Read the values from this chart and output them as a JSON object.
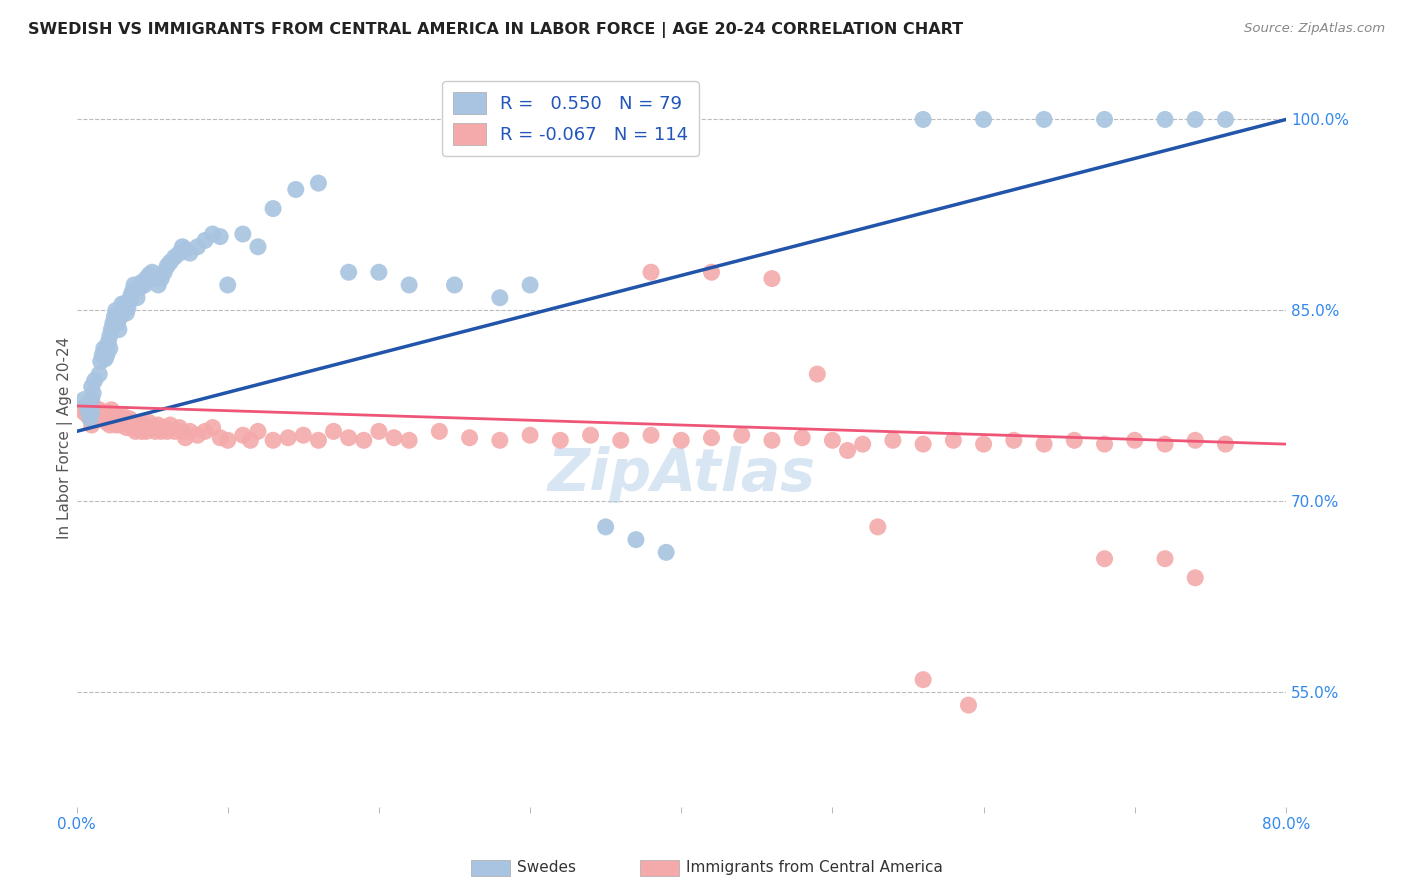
{
  "title": "SWEDISH VS IMMIGRANTS FROM CENTRAL AMERICA IN LABOR FORCE | AGE 20-24 CORRELATION CHART",
  "source": "Source: ZipAtlas.com",
  "ylabel": "In Labor Force | Age 20-24",
  "xlim": [
    0.0,
    0.8
  ],
  "ylim": [
    0.46,
    1.04
  ],
  "yticks": [
    0.55,
    0.7,
    0.85,
    1.0
  ],
  "yticklabels": [
    "55.0%",
    "70.0%",
    "85.0%",
    "100.0%"
  ],
  "blue_R": 0.55,
  "blue_N": 79,
  "pink_R": -0.067,
  "pink_N": 114,
  "blue_color": "#A8C4E0",
  "pink_color": "#F4AAAA",
  "blue_line_color": "#2255AA",
  "pink_line_color": "#EE5577",
  "blue_scatter_x": [
    0.005,
    0.007,
    0.008,
    0.009,
    0.01,
    0.01,
    0.01,
    0.011,
    0.012,
    0.015,
    0.016,
    0.017,
    0.018,
    0.019,
    0.02,
    0.02,
    0.021,
    0.022,
    0.022,
    0.023,
    0.024,
    0.025,
    0.026,
    0.027,
    0.028,
    0.029,
    0.03,
    0.031,
    0.032,
    0.033,
    0.034,
    0.035,
    0.036,
    0.037,
    0.038,
    0.04,
    0.042,
    0.043,
    0.045,
    0.046,
    0.048,
    0.05,
    0.052,
    0.054,
    0.056,
    0.058,
    0.06,
    0.062,
    0.065,
    0.068,
    0.07,
    0.072,
    0.075,
    0.08,
    0.085,
    0.09,
    0.095,
    0.1,
    0.11,
    0.12,
    0.13,
    0.145,
    0.16,
    0.18,
    0.2,
    0.22,
    0.25,
    0.28,
    0.3,
    0.35,
    0.37,
    0.39,
    0.56,
    0.6,
    0.64,
    0.68,
    0.72,
    0.74,
    0.76
  ],
  "blue_scatter_y": [
    0.78,
    0.775,
    0.77,
    0.765,
    0.79,
    0.78,
    0.77,
    0.785,
    0.795,
    0.8,
    0.81,
    0.815,
    0.82,
    0.812,
    0.82,
    0.815,
    0.825,
    0.83,
    0.82,
    0.835,
    0.84,
    0.845,
    0.85,
    0.84,
    0.835,
    0.845,
    0.855,
    0.85,
    0.855,
    0.848,
    0.852,
    0.858,
    0.862,
    0.865,
    0.87,
    0.86,
    0.868,
    0.872,
    0.87,
    0.875,
    0.878,
    0.88,
    0.875,
    0.87,
    0.875,
    0.88,
    0.885,
    0.888,
    0.892,
    0.895,
    0.9,
    0.898,
    0.895,
    0.9,
    0.905,
    0.91,
    0.908,
    0.87,
    0.91,
    0.9,
    0.93,
    0.945,
    0.95,
    0.88,
    0.88,
    0.87,
    0.87,
    0.86,
    0.87,
    0.68,
    0.67,
    0.66,
    1.0,
    1.0,
    1.0,
    1.0,
    1.0,
    1.0,
    1.0
  ],
  "pink_scatter_x": [
    0.005,
    0.006,
    0.007,
    0.008,
    0.009,
    0.01,
    0.01,
    0.011,
    0.012,
    0.013,
    0.014,
    0.015,
    0.016,
    0.017,
    0.018,
    0.019,
    0.02,
    0.02,
    0.021,
    0.022,
    0.022,
    0.023,
    0.024,
    0.025,
    0.026,
    0.027,
    0.028,
    0.029,
    0.03,
    0.031,
    0.032,
    0.033,
    0.034,
    0.035,
    0.036,
    0.037,
    0.038,
    0.039,
    0.04,
    0.041,
    0.042,
    0.043,
    0.044,
    0.045,
    0.046,
    0.048,
    0.05,
    0.052,
    0.054,
    0.056,
    0.058,
    0.06,
    0.062,
    0.065,
    0.068,
    0.07,
    0.072,
    0.075,
    0.08,
    0.085,
    0.09,
    0.095,
    0.1,
    0.11,
    0.115,
    0.12,
    0.13,
    0.14,
    0.15,
    0.16,
    0.17,
    0.18,
    0.19,
    0.2,
    0.21,
    0.22,
    0.24,
    0.26,
    0.28,
    0.3,
    0.32,
    0.34,
    0.36,
    0.38,
    0.4,
    0.42,
    0.44,
    0.46,
    0.48,
    0.5,
    0.52,
    0.54,
    0.56,
    0.58,
    0.6,
    0.62,
    0.64,
    0.66,
    0.68,
    0.7,
    0.72,
    0.74,
    0.76,
    0.68,
    0.72,
    0.74,
    0.38,
    0.42,
    0.46,
    0.49,
    0.51,
    0.53,
    0.56,
    0.59
  ],
  "pink_scatter_y": [
    0.77,
    0.775,
    0.768,
    0.772,
    0.765,
    0.778,
    0.76,
    0.775,
    0.77,
    0.768,
    0.765,
    0.772,
    0.768,
    0.77,
    0.765,
    0.768,
    0.77,
    0.762,
    0.768,
    0.765,
    0.76,
    0.772,
    0.768,
    0.765,
    0.76,
    0.768,
    0.765,
    0.76,
    0.768,
    0.762,
    0.765,
    0.758,
    0.762,
    0.765,
    0.76,
    0.758,
    0.762,
    0.755,
    0.76,
    0.758,
    0.762,
    0.755,
    0.76,
    0.758,
    0.755,
    0.762,
    0.758,
    0.755,
    0.76,
    0.755,
    0.758,
    0.755,
    0.76,
    0.755,
    0.758,
    0.755,
    0.75,
    0.755,
    0.752,
    0.755,
    0.758,
    0.75,
    0.748,
    0.752,
    0.748,
    0.755,
    0.748,
    0.75,
    0.752,
    0.748,
    0.755,
    0.75,
    0.748,
    0.755,
    0.75,
    0.748,
    0.755,
    0.75,
    0.748,
    0.752,
    0.748,
    0.752,
    0.748,
    0.752,
    0.748,
    0.75,
    0.752,
    0.748,
    0.75,
    0.748,
    0.745,
    0.748,
    0.745,
    0.748,
    0.745,
    0.748,
    0.745,
    0.748,
    0.745,
    0.748,
    0.745,
    0.748,
    0.745,
    0.655,
    0.655,
    0.64,
    0.88,
    0.88,
    0.875,
    0.8,
    0.74,
    0.68,
    0.56,
    0.54
  ],
  "blue_line_x": [
    0.0,
    0.8
  ],
  "blue_line_y": [
    0.755,
    1.0
  ],
  "pink_line_x": [
    0.0,
    0.8
  ],
  "pink_line_y": [
    0.775,
    0.745
  ]
}
